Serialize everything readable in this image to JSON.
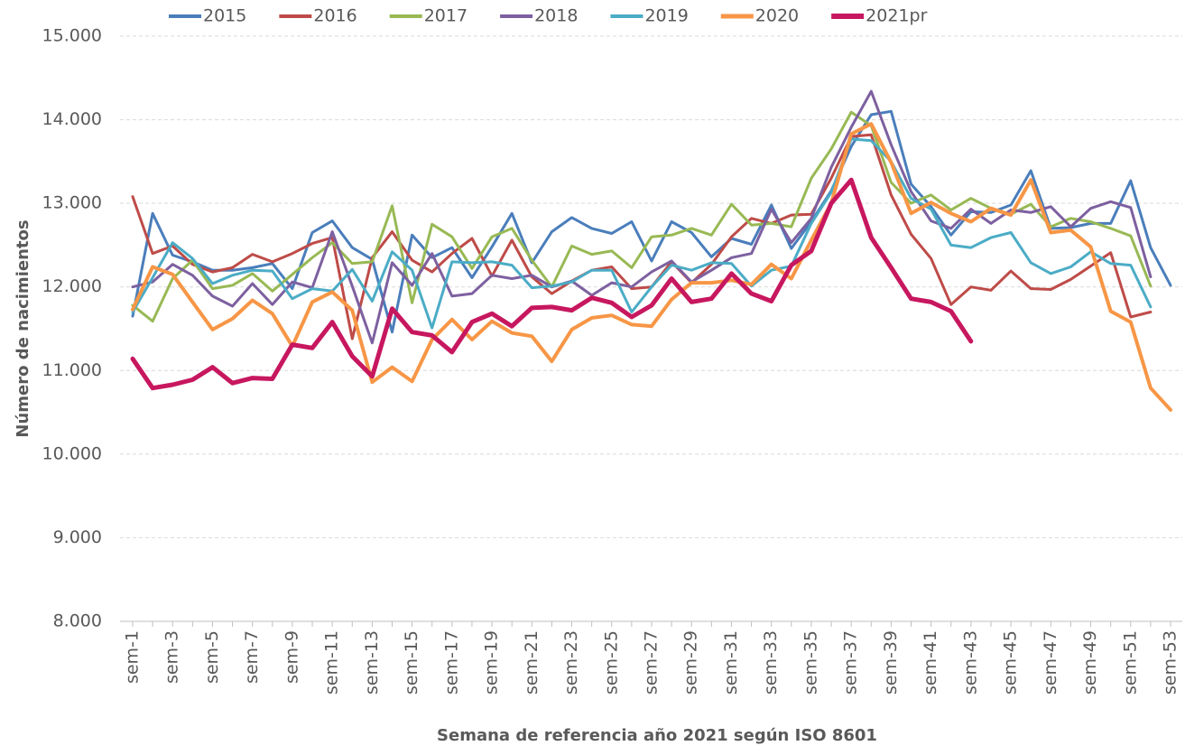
{
  "chart_data": {
    "type": "line",
    "x_label": "Semana de referencia año 2021 según ISO 8601",
    "y_label": "Número de nacimientos",
    "categories": [
      "sem-1",
      null,
      "sem-3",
      null,
      "sem-5",
      null,
      "sem-7",
      null,
      "sem-9",
      null,
      "sem-11",
      null,
      "sem-13",
      null,
      "sem-15",
      null,
      "sem-17",
      null,
      "sem-19",
      null,
      "sem-21",
      null,
      "sem-23",
      null,
      "sem-25",
      null,
      "sem-27",
      null,
      "sem-29",
      null,
      "sem-31",
      null,
      "sem-33",
      null,
      "sem-35",
      null,
      "sem-37",
      null,
      "sem-39",
      null,
      "sem-41",
      null,
      "sem-43",
      null,
      "sem-45",
      null,
      "sem-47",
      null,
      "sem-49",
      null,
      "sem-51",
      null,
      "sem-53"
    ],
    "ylim": [
      8000,
      15000
    ],
    "yticks": [
      {
        "value": 8000,
        "label": "8.000"
      },
      {
        "value": 9000,
        "label": "9.000"
      },
      {
        "value": 10000,
        "label": "10.000"
      },
      {
        "value": 11000,
        "label": "11.000"
      },
      {
        "value": 12000,
        "label": "12.000"
      },
      {
        "value": 13000,
        "label": "13.000"
      },
      {
        "value": 14000,
        "label": "14.000"
      },
      {
        "value": 15000,
        "label": "15.000"
      }
    ],
    "grid": true,
    "legend": "top",
    "series": [
      {
        "name": "2015",
        "color": "#4a7ebb",
        "width": 3,
        "values": [
          11650,
          12880,
          12380,
          12300,
          12200,
          12200,
          12230,
          12280,
          11980,
          12650,
          12790,
          12470,
          12330,
          11460,
          12620,
          12350,
          12470,
          12110,
          12480,
          12880,
          12290,
          12660,
          12830,
          12700,
          12640,
          12780,
          12310,
          12780,
          12650,
          12360,
          12580,
          12510,
          12980,
          12460,
          12780,
          13150,
          13680,
          14060,
          14100,
          13230,
          12960,
          12620,
          12900,
          12890,
          12980,
          13390,
          12700,
          12710,
          12760,
          12760,
          13270,
          12470,
          12020
        ]
      },
      {
        "name": "2016",
        "color": "#be4b48",
        "width": 3,
        "values": [
          13080,
          12400,
          12490,
          12270,
          12180,
          12230,
          12390,
          12300,
          12400,
          12520,
          12590,
          11380,
          12350,
          12660,
          12320,
          12180,
          12400,
          12580,
          12130,
          12560,
          12120,
          11920,
          12070,
          12200,
          12240,
          11980,
          12000,
          12300,
          12050,
          12270,
          12600,
          12820,
          12760,
          12860,
          12870,
          13300,
          13800,
          13820,
          13100,
          12630,
          12340,
          11790,
          12000,
          11960,
          12190,
          11980,
          11970,
          12090,
          12250,
          12410,
          11640,
          11700,
          null
        ]
      },
      {
        "name": "2017",
        "color": "#98b954",
        "width": 3,
        "values": [
          11780,
          11590,
          12100,
          12320,
          11980,
          12020,
          12160,
          11950,
          12150,
          12350,
          12530,
          12280,
          12300,
          12970,
          11810,
          12750,
          12600,
          12220,
          12600,
          12700,
          12320,
          12000,
          12490,
          12390,
          12430,
          12230,
          12600,
          12620,
          12700,
          12620,
          12990,
          12740,
          12760,
          12720,
          13300,
          13650,
          14090,
          13930,
          13250,
          13000,
          13100,
          12920,
          13060,
          12940,
          12870,
          12990,
          12720,
          12820,
          12780,
          12700,
          12610,
          12010,
          null
        ]
      },
      {
        "name": "2018",
        "color": "#7d60a0",
        "width": 3,
        "values": [
          12000,
          12060,
          12270,
          12140,
          11890,
          11770,
          12040,
          11790,
          12060,
          11990,
          12660,
          12010,
          11330,
          12290,
          12020,
          12400,
          11890,
          11920,
          12140,
          12100,
          12140,
          12000,
          12070,
          11900,
          12050,
          12000,
          12180,
          12310,
          12060,
          12200,
          12350,
          12400,
          12930,
          12530,
          12820,
          13430,
          13910,
          14340,
          13700,
          13140,
          12790,
          12700,
          12930,
          12760,
          12920,
          12890,
          12960,
          12720,
          12940,
          13020,
          12950,
          12120,
          null
        ]
      },
      {
        "name": "2019",
        "color": "#4bacc6",
        "width": 3,
        "values": [
          11700,
          12110,
          12530,
          12340,
          12040,
          12140,
          12200,
          12190,
          11860,
          11980,
          11950,
          12210,
          11830,
          12420,
          12200,
          11510,
          12300,
          12290,
          12300,
          12260,
          11990,
          12010,
          12060,
          12200,
          12200,
          11700,
          12000,
          12260,
          12200,
          12290,
          12280,
          12010,
          12200,
          12250,
          12760,
          13130,
          13770,
          13750,
          13500,
          13060,
          12930,
          12500,
          12470,
          12590,
          12650,
          12290,
          12160,
          12240,
          12420,
          12280,
          12260,
          11760,
          null
        ]
      },
      {
        "name": "2020",
        "color": "#f79646",
        "width": 4,
        "values": [
          11730,
          12240,
          12150,
          11820,
          11490,
          11620,
          11840,
          11680,
          11290,
          11820,
          11940,
          11720,
          10860,
          11040,
          10870,
          11370,
          11610,
          11370,
          11590,
          11450,
          11410,
          11110,
          11490,
          11630,
          11660,
          11550,
          11530,
          11850,
          12050,
          12050,
          12080,
          12030,
          12270,
          12100,
          12560,
          13000,
          13830,
          13950,
          13490,
          12880,
          13010,
          12880,
          12780,
          12940,
          12860,
          13280,
          12650,
          12680,
          12480,
          11710,
          11580,
          10790,
          10530
        ]
      },
      {
        "name": "2021pr",
        "color": "#c7175f",
        "width": 5,
        "values": [
          11140,
          10790,
          10830,
          10890,
          11040,
          10850,
          10910,
          10900,
          11310,
          11270,
          11580,
          11170,
          10930,
          11740,
          11460,
          11420,
          11220,
          11580,
          11680,
          11530,
          11750,
          11760,
          11720,
          11870,
          11810,
          11640,
          11780,
          12100,
          11820,
          11860,
          12160,
          11920,
          11830,
          12260,
          12430,
          13000,
          13280,
          12590,
          12230,
          11860,
          11820,
          11710,
          11350,
          null,
          null,
          null,
          null,
          null,
          null,
          null,
          null,
          null,
          null
        ]
      }
    ]
  }
}
